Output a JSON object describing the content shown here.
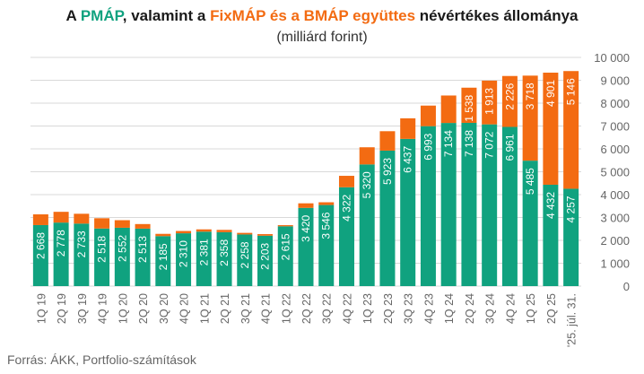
{
  "title": {
    "p1": "A ",
    "pmap": "PMÁP",
    "p2": ", valamint a ",
    "fixmap": "FixMÁP és a BMÁP együttes",
    "p3": " névértékes állománya"
  },
  "subtitle": "(milliárd forint)",
  "source": "Forrás: ÁKK, Portfolio-számítások",
  "colors": {
    "pmap": "#10a27f",
    "fixmap": "#f36b12",
    "grid": "#d9d9d9",
    "axis": "#666666"
  },
  "chart_data": {
    "type": "bar",
    "stacked": true,
    "categories": [
      "1Q 19",
      "2Q 19",
      "3Q 19",
      "4Q 19",
      "1Q 20",
      "2Q 20",
      "3Q 20",
      "4Q 20",
      "1Q 21",
      "2Q 21",
      "3Q 21",
      "4Q 21",
      "1Q 22",
      "2Q 22",
      "3Q 22",
      "4Q 22",
      "1Q 23",
      "2Q 23",
      "3Q 23",
      "4Q 23",
      "1Q 24",
      "2Q 24",
      "3Q 24",
      "4Q 24",
      "1Q 25",
      "2Q 25",
      "'25. júl. 31."
    ],
    "series": [
      {
        "values": [
          2668,
          2778,
          2733,
          2518,
          2552,
          2513,
          2185,
          2310,
          2381,
          2358,
          2258,
          2203,
          2615,
          3420,
          3546,
          4322,
          5320,
          5923,
          6437,
          6993,
          7134,
          7138,
          7072,
          6961,
          5485,
          4432,
          4257
        ],
        "labels": [
          "2 668",
          "2 778",
          "2 733",
          "2 518",
          "2 552",
          "2 513",
          "2 185",
          "2 310",
          "2 381",
          "2 358",
          "2 258",
          "2 203",
          "2 615",
          "3 420",
          "3 546",
          "4 322",
          "5 320",
          "5 923",
          "6 437",
          "6 993",
          "7 134",
          "7 138",
          "7 072",
          "6 961",
          "5 485",
          "4 432",
          "4 257"
        ]
      },
      {
        "values": [
          470,
          470,
          430,
          450,
          330,
          200,
          100,
          100,
          100,
          100,
          70,
          70,
          50,
          200,
          120,
          500,
          750,
          850,
          900,
          900,
          1200,
          1538,
          1913,
          2226,
          3718,
          4901,
          5146
        ],
        "labels": [
          "",
          "",
          "",
          "",
          "",
          "",
          "",
          "",
          "",
          "",
          "",
          "",
          "",
          "",
          "",
          "",
          "",
          "",
          "",
          "",
          "",
          "1 538",
          "1 913",
          "2 226",
          "3 718",
          "4 901",
          "5 146"
        ]
      }
    ],
    "ylim": [
      0,
      10000
    ],
    "yticks": [
      0,
      1000,
      2000,
      3000,
      4000,
      5000,
      6000,
      7000,
      8000,
      9000,
      10000
    ],
    "ytick_labels": [
      "0",
      "1 000",
      "2 000",
      "3 000",
      "4 000",
      "5 000",
      "6 000",
      "7 000",
      "8 000",
      "9 000",
      "10 000"
    ],
    "y_axis_side": "right",
    "grid": true
  }
}
